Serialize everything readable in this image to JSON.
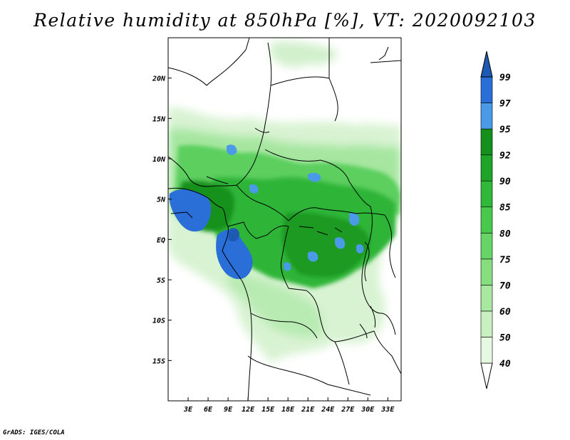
{
  "title": "Relative humidity at 850hPa [%], VT: 2020092103",
  "credit": "GrADS: IGES/COLA",
  "map": {
    "lon_range": [
      0,
      35
    ],
    "lat_range": [
      -20,
      25
    ],
    "lon_ticks": [
      {
        "value": 3,
        "label": "3E"
      },
      {
        "value": 6,
        "label": "6E"
      },
      {
        "value": 9,
        "label": "9E"
      },
      {
        "value": 12,
        "label": "12E"
      },
      {
        "value": 15,
        "label": "15E"
      },
      {
        "value": 18,
        "label": "18E"
      },
      {
        "value": 21,
        "label": "21E"
      },
      {
        "value": 24,
        "label": "24E"
      },
      {
        "value": 27,
        "label": "27E"
      },
      {
        "value": 30,
        "label": "30E"
      },
      {
        "value": 33,
        "label": "33E"
      }
    ],
    "lat_ticks": [
      {
        "value": 20,
        "label": "20N"
      },
      {
        "value": 15,
        "label": "15N"
      },
      {
        "value": 10,
        "label": "10N"
      },
      {
        "value": 5,
        "label": "5N"
      },
      {
        "value": 0,
        "label": "EQ"
      },
      {
        "value": -5,
        "label": "5S"
      },
      {
        "value": -10,
        "label": "10S"
      },
      {
        "value": -15,
        "label": "15S"
      }
    ]
  },
  "colorbar": {
    "levels": [
      {
        "label": "40",
        "color": "#e6f8e2"
      },
      {
        "label": "50",
        "color": "#c8f0c0"
      },
      {
        "label": "60",
        "color": "#a8e8a0"
      },
      {
        "label": "70",
        "color": "#86de80"
      },
      {
        "label": "75",
        "color": "#66d466"
      },
      {
        "label": "80",
        "color": "#48c84c"
      },
      {
        "label": "85",
        "color": "#30b838"
      },
      {
        "label": "90",
        "color": "#1ea428"
      },
      {
        "label": "92",
        "color": "#14901c"
      },
      {
        "label": "95",
        "color": "#4a9ae8"
      },
      {
        "label": "97",
        "color": "#2a6ed8"
      },
      {
        "label": "99",
        "color": "#1e5ab4"
      }
    ]
  }
}
